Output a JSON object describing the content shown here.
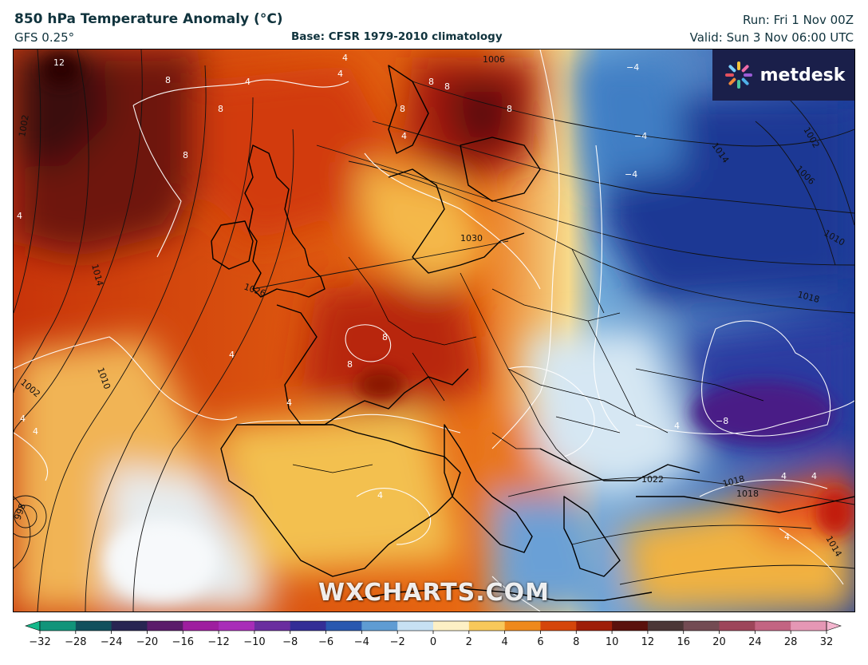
{
  "header": {
    "title": "850 hPa Temperature Anomaly (°C)",
    "model": "GFS 0.25°",
    "base": "Base: CFSR 1979-2010 climatology",
    "run": "Run: Fri 1 Nov 00Z",
    "valid": "Valid: Sun 3 Nov 06:00 UTC"
  },
  "logo": {
    "text": "metdesk",
    "icon": "metdesk-flower-icon"
  },
  "watermark": "WXCHARTS.COM",
  "colors": {
    "very_warm": "#5a0a0a",
    "warm_red": "#c42f07",
    "orange": "#eb7a15",
    "yellow": "#f6c84a",
    "pale": "#fbeec2",
    "light_blue": "#bcd9ee",
    "blue": "#3f7fc4",
    "deep_blue": "#1d3f9a",
    "purple": "#4b1d8a"
  },
  "colorbar": {
    "ticks": [
      "−32",
      "−28",
      "−24",
      "−20",
      "−16",
      "−12",
      "−10",
      "−8",
      "−6",
      "−4",
      "−2",
      "0",
      "2",
      "4",
      "6",
      "8",
      "10",
      "12",
      "16",
      "20",
      "24",
      "28",
      "32"
    ],
    "stops": [
      "#15b88a",
      "#0d6f6a",
      "#14304f",
      "#3b1a55",
      "#7a1d7e",
      "#c21fc0",
      "#8e3bb0",
      "#45208d",
      "#233b9e",
      "#2f74c0",
      "#8ec3e6",
      "#ffffff",
      "#fbe08a",
      "#f4b02a",
      "#e8620d",
      "#c22a07",
      "#7a1108",
      "#3a1010",
      "#5b5b5b",
      "#8a3a4a",
      "#b0506a",
      "#d6789a",
      "#f4b6cf"
    ]
  },
  "map": {
    "isobar_labels": [
      {
        "text": "1006",
        "cls": "iso"
      },
      {
        "text": "1002",
        "cls": "iso"
      },
      {
        "text": "1014",
        "cls": "iso"
      },
      {
        "text": "1026",
        "cls": "iso"
      },
      {
        "text": "1030",
        "cls": "iso"
      },
      {
        "text": "1010",
        "cls": "iso"
      },
      {
        "text": "1002",
        "cls": "iso"
      },
      {
        "text": "998",
        "cls": "iso"
      },
      {
        "text": "1002",
        "cls": "iso"
      },
      {
        "text": "1006",
        "cls": "iso"
      },
      {
        "text": "1010",
        "cls": "iso"
      },
      {
        "text": "1014",
        "cls": "iso"
      },
      {
        "text": "1018",
        "cls": "iso"
      },
      {
        "text": "1022",
        "cls": "iso"
      },
      {
        "text": "1018",
        "cls": "iso"
      },
      {
        "text": "1014",
        "cls": "iso"
      },
      {
        "text": "1018",
        "cls": "iso"
      }
    ],
    "anomaly_labels": [
      "12",
      "8",
      "8",
      "8",
      "4",
      "4",
      "4",
      "8",
      "8",
      "8",
      "8",
      "4",
      "4",
      "4",
      "4",
      "4",
      "8",
      "8",
      "4",
      "4",
      "4",
      "4",
      "−4",
      "−4",
      "−8",
      "−4",
      "4",
      "4"
    ]
  }
}
